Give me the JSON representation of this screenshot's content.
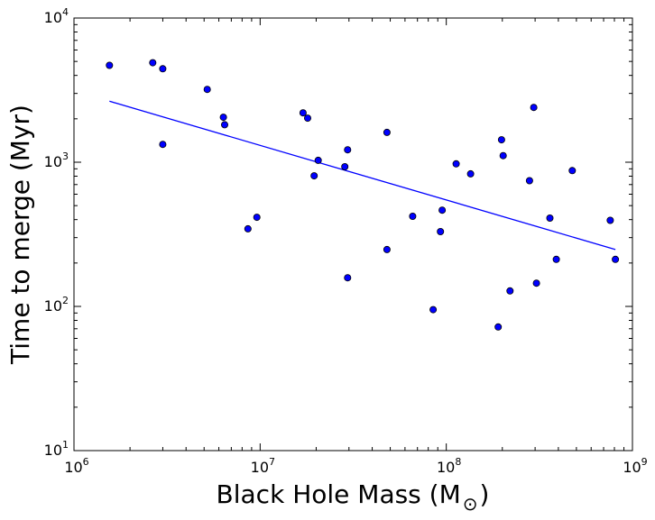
{
  "chart_data": {
    "type": "scatter",
    "title": "",
    "xlabel": "Black Hole Mass (M",
    "xlabel_suffix": ")",
    "xlabel_subscript": "⊙",
    "ylabel": "Time to merge (Myr)",
    "x_scale": "log",
    "y_scale": "log",
    "xlim": [
      1000000,
      1000000000
    ],
    "ylim": [
      10,
      10000
    ],
    "x_ticks": [
      {
        "base": "10",
        "exp": "6",
        "value": 1000000
      },
      {
        "base": "10",
        "exp": "7",
        "value": 10000000
      },
      {
        "base": "10",
        "exp": "8",
        "value": 100000000
      },
      {
        "base": "10",
        "exp": "9",
        "value": 1000000000
      }
    ],
    "y_ticks": [
      {
        "base": "10",
        "exp": "1",
        "value": 10
      },
      {
        "base": "10",
        "exp": "2",
        "value": 100
      },
      {
        "base": "10",
        "exp": "3",
        "value": 1000
      },
      {
        "base": "10",
        "exp": "4",
        "value": 10000
      }
    ],
    "grid": false,
    "legend": "none",
    "colors": {
      "points": "#0000ff",
      "point_edge": "#000000",
      "line": "#0000ff"
    },
    "points": [
      {
        "x": 1550000.0,
        "y": 4700
      },
      {
        "x": 2650000.0,
        "y": 4900
      },
      {
        "x": 3000000.0,
        "y": 4450
      },
      {
        "x": 3000000.0,
        "y": 1330
      },
      {
        "x": 5200000.0,
        "y": 3200
      },
      {
        "x": 6350000.0,
        "y": 2050
      },
      {
        "x": 6450000.0,
        "y": 1820
      },
      {
        "x": 8600000.0,
        "y": 345
      },
      {
        "x": 9600000.0,
        "y": 415
      },
      {
        "x": 17000000.0,
        "y": 2200
      },
      {
        "x": 18000000.0,
        "y": 2020
      },
      {
        "x": 19500000.0,
        "y": 805
      },
      {
        "x": 20500000.0,
        "y": 1030
      },
      {
        "x": 28500000.0,
        "y": 930
      },
      {
        "x": 29500000.0,
        "y": 1220
      },
      {
        "x": 29500000.0,
        "y": 158
      },
      {
        "x": 48000000.0,
        "y": 1610
      },
      {
        "x": 48000000.0,
        "y": 248
      },
      {
        "x": 66000000.0,
        "y": 422
      },
      {
        "x": 85000000.0,
        "y": 95
      },
      {
        "x": 93000000.0,
        "y": 330
      },
      {
        "x": 95000000.0,
        "y": 465
      },
      {
        "x": 113000000.0,
        "y": 975
      },
      {
        "x": 135000000.0,
        "y": 830
      },
      {
        "x": 190000000.0,
        "y": 72
      },
      {
        "x": 198000000.0,
        "y": 1430
      },
      {
        "x": 202000000.0,
        "y": 1110
      },
      {
        "x": 220000000.0,
        "y": 128
      },
      {
        "x": 280000000.0,
        "y": 745
      },
      {
        "x": 295000000.0,
        "y": 2400
      },
      {
        "x": 305000000.0,
        "y": 145
      },
      {
        "x": 360000000.0,
        "y": 410
      },
      {
        "x": 390000000.0,
        "y": 212
      },
      {
        "x": 475000000.0,
        "y": 875
      },
      {
        "x": 760000000.0,
        "y": 395
      },
      {
        "x": 810000000.0,
        "y": 212
      }
    ],
    "fit_line": [
      {
        "x": 1550000.0,
        "y": 2650
      },
      {
        "x": 810000000.0,
        "y": 248
      }
    ]
  }
}
